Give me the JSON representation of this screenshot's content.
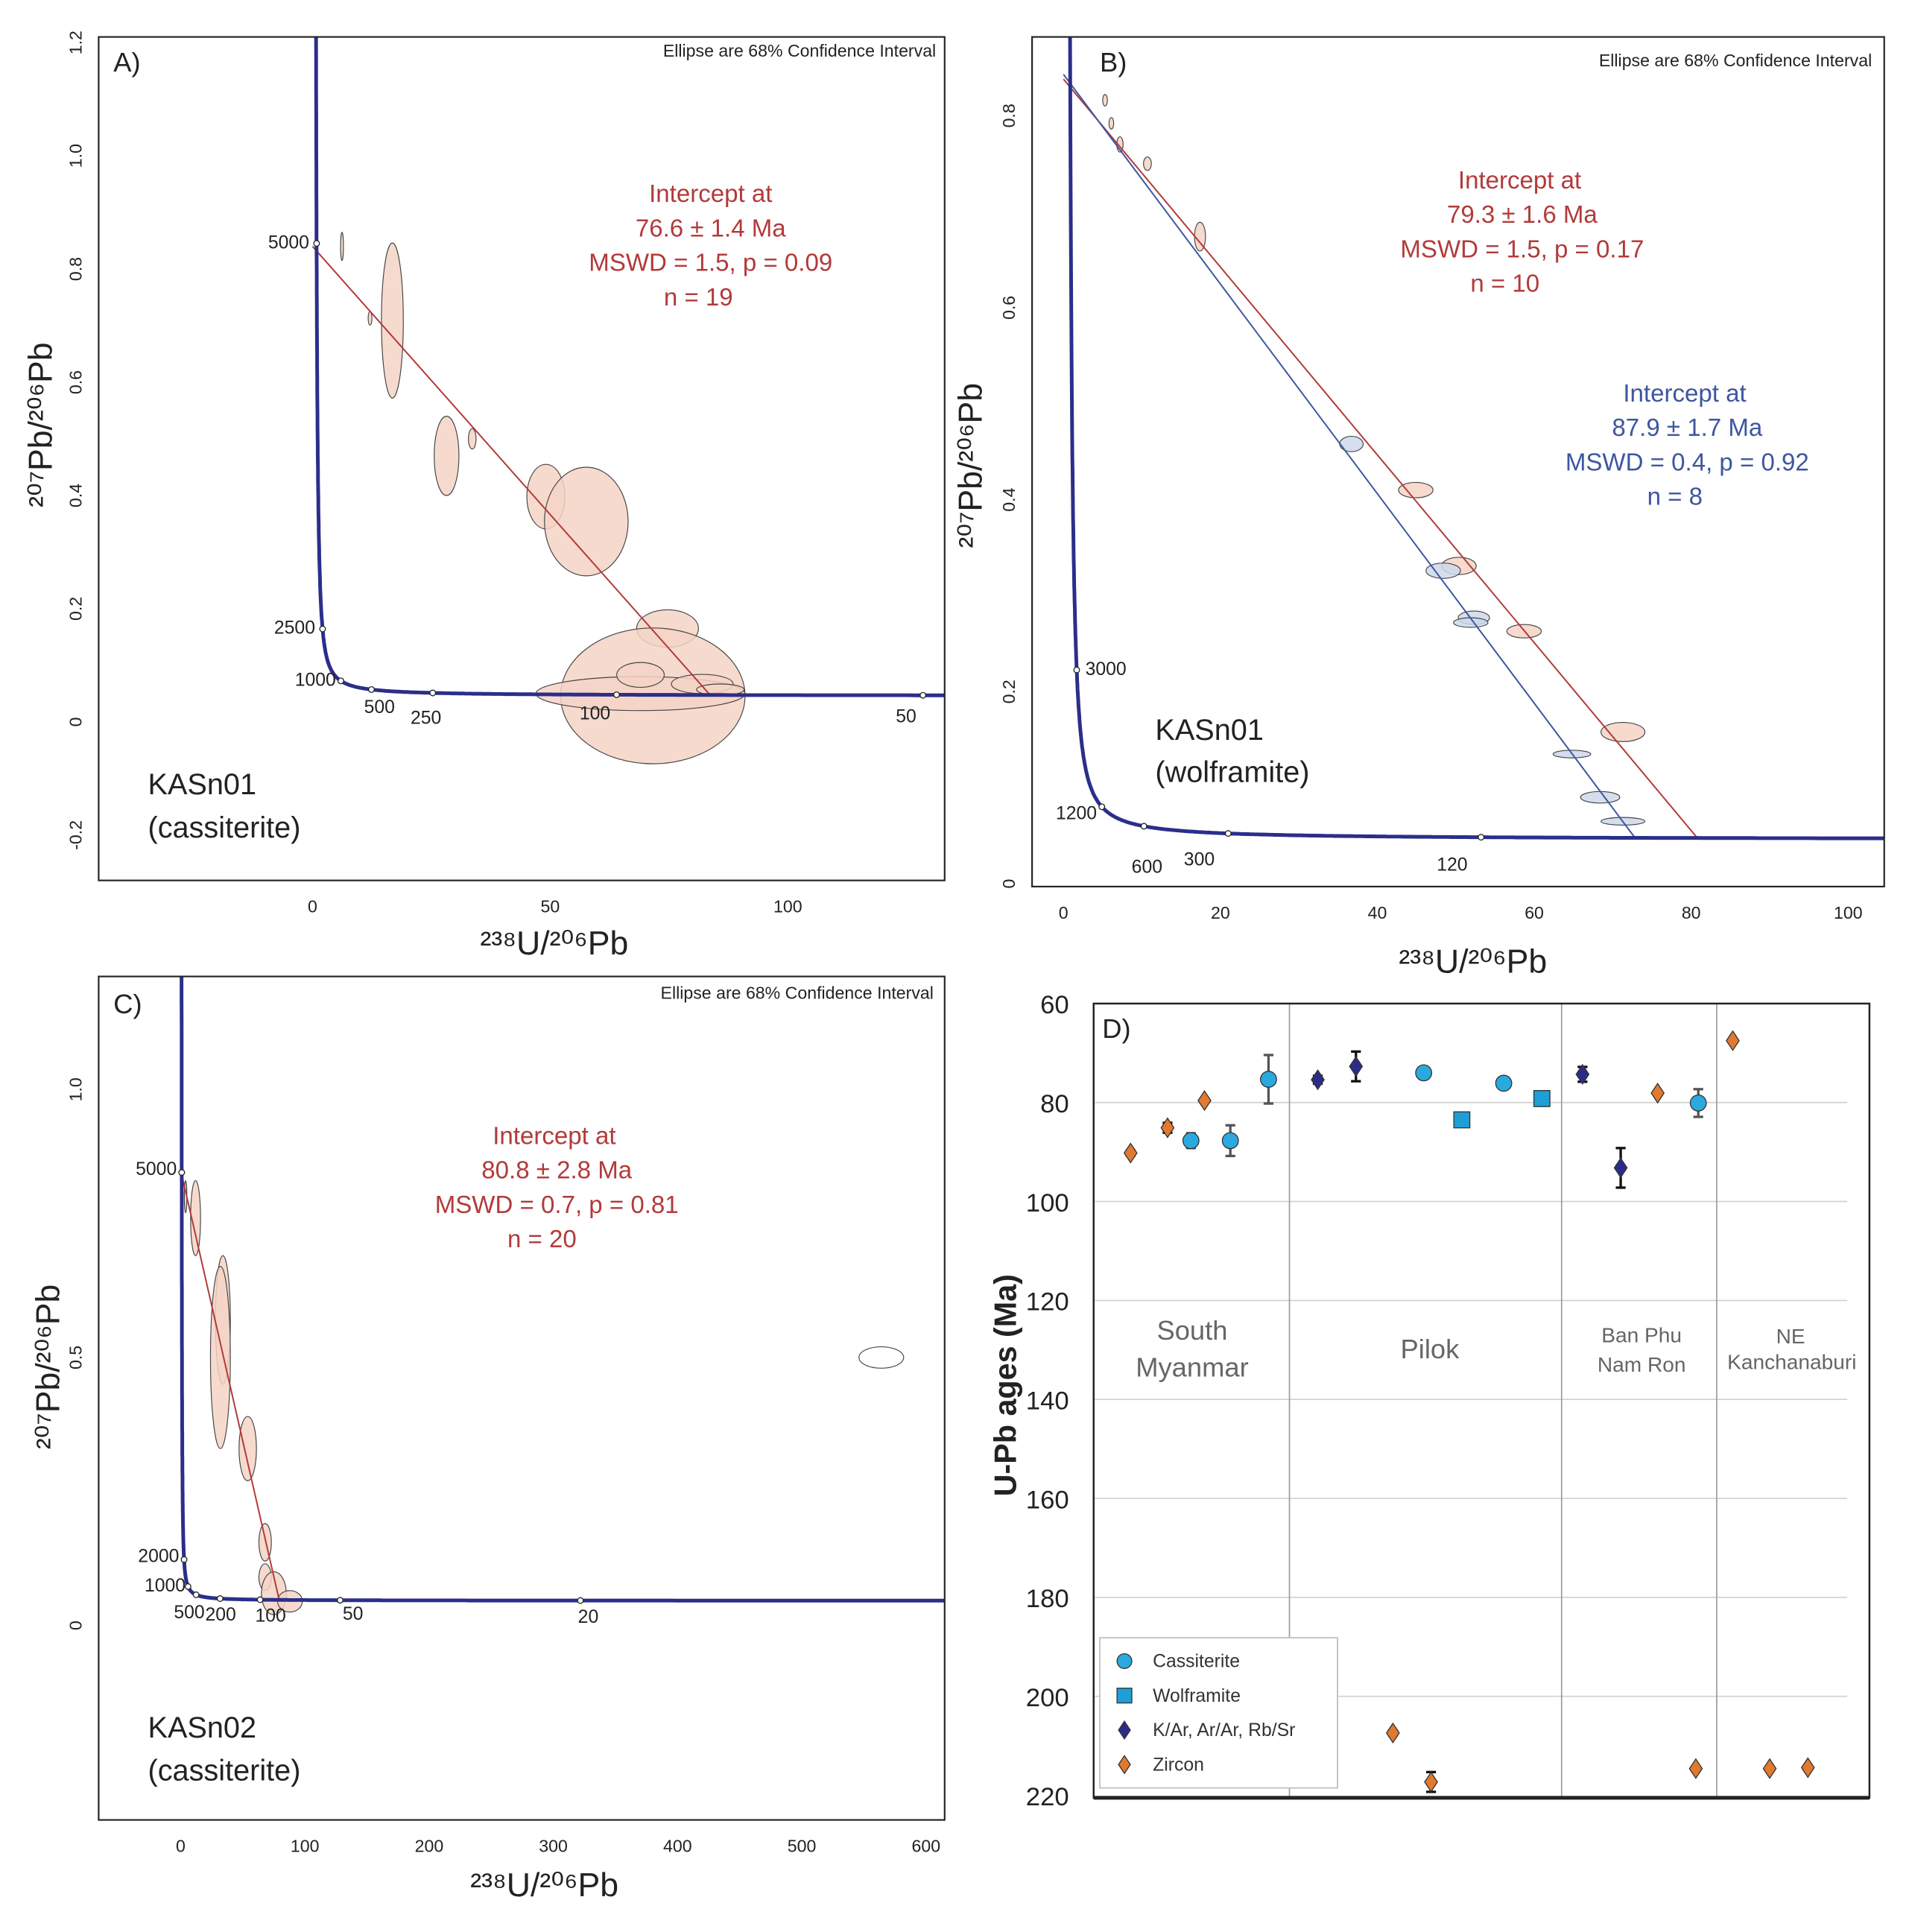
{
  "colors": {
    "concordia": "#2b2e8a",
    "discordia_red": "#b23a3a",
    "discordia_blue": "#3d56a0",
    "ellipse_red_fill": "#f5d3c6",
    "ellipse_blue_fill": "#cdd8ea",
    "cassiterite": "#2aa9df",
    "wolframite": "#1e9fd6",
    "kar": "#2c2c88",
    "zircon": "#e07a2e"
  },
  "chart_data": [
    {
      "id": "A",
      "type": "scatter",
      "panel_label": "A)",
      "note": "Ellipse are 68% Confidence Interval",
      "xlabel": "²³⁸U/²⁰⁶Pb",
      "ylabel": "²⁰⁷Pb/²⁰⁶Pb",
      "xlim": [
        -45,
        133
      ],
      "ylim": [
        -0.28,
        1.21
      ],
      "xticks": [
        0,
        50,
        100
      ],
      "yticks": [
        -0.2,
        0,
        0.2,
        0.4,
        0.6,
        0.8,
        1.0,
        1.2
      ],
      "ytick_labels": [
        "-0.2",
        "0",
        "0.2",
        "0.4",
        "0.6",
        "0.8",
        "1.0",
        "1.2"
      ],
      "concordia_ages_ma": [
        5000,
        2500,
        1000,
        500,
        250,
        100,
        50
      ],
      "sample": [
        "KASn01",
        "(cassiterite)"
      ],
      "discordia": [
        {
          "color": "red",
          "y_intercept": 0.84,
          "age_ma": 76.6,
          "text": [
            "Intercept at",
            "76.6 ± 1.4 Ma",
            "MSWD = 1.5, p = 0.09",
            "n = 19"
          ]
        }
      ],
      "ellipses": [
        {
          "x": 16.8,
          "y": 0.709,
          "sx": 2.3,
          "sy": 0.137,
          "c": "red"
        },
        {
          "x": 6.2,
          "y": 0.84,
          "sx": 0.3,
          "sy": 0.025,
          "c": "red"
        },
        {
          "x": 12.1,
          "y": 0.713,
          "sx": 0.4,
          "sy": 0.012,
          "c": "red"
        },
        {
          "x": 28.2,
          "y": 0.47,
          "sx": 2.6,
          "sy": 0.07,
          "c": "red"
        },
        {
          "x": 33.6,
          "y": 0.5,
          "sx": 0.8,
          "sy": 0.018,
          "c": "red"
        },
        {
          "x": 49.1,
          "y": 0.398,
          "sx": 4.0,
          "sy": 0.057,
          "c": "red"
        },
        {
          "x": 57.6,
          "y": 0.354,
          "sx": 8.8,
          "sy": 0.096,
          "c": "red"
        },
        {
          "x": 74.7,
          "y": 0.165,
          "sx": 6.5,
          "sy": 0.033,
          "c": "red"
        },
        {
          "x": 71.6,
          "y": 0.046,
          "sx": 19.4,
          "sy": 0.12,
          "c": "red"
        },
        {
          "x": 69.0,
          "y": 0.05,
          "sx": 22.0,
          "sy": 0.03,
          "c": "red"
        },
        {
          "x": 69.0,
          "y": 0.083,
          "sx": 5.0,
          "sy": 0.022,
          "c": "red"
        },
        {
          "x": 82.0,
          "y": 0.067,
          "sx": 6.5,
          "sy": 0.017,
          "c": "red"
        },
        {
          "x": 85.8,
          "y": 0.057,
          "sx": 5.0,
          "sy": 0.01,
          "c": "red"
        }
      ]
    },
    {
      "id": "B",
      "type": "scatter",
      "panel_label": "B)",
      "note": "Ellipse are 68% Confidence Interval",
      "xlabel": "²³⁸U/²⁰⁶Pb",
      "ylabel": "²⁰⁷Pb/²⁰⁶Pb",
      "xlim": [
        -4,
        104.6
      ],
      "ylim": [
        -0.003,
        0.882
      ],
      "xticks": [
        0,
        20,
        40,
        60,
        80,
        100
      ],
      "yticks": [
        0,
        0.2,
        0.4,
        0.6,
        0.8
      ],
      "ytick_labels": [
        "0",
        "0.2",
        "0.4",
        "0.6",
        "0.8"
      ],
      "concordia_ages_ma": [
        3000,
        1200,
        600,
        300,
        120
      ],
      "sample": [
        "KASn01",
        "(wolframite)"
      ],
      "discordia": [
        {
          "color": "red",
          "y_intercept": 0.838,
          "age_ma": 79.3,
          "text": [
            "Intercept at",
            "79.3 ± 1.6 Ma",
            "MSWD = 1.5, p = 0.17",
            "n = 10"
          ]
        },
        {
          "color": "blue",
          "y_intercept": 0.843,
          "age_ma": 87.9,
          "text": [
            "Intercept at",
            "87.9 ± 1.7 Ma",
            "MSWD = 0.4, p = 0.92",
            "n = 8"
          ]
        }
      ],
      "ellipses": [
        {
          "x": 5.3,
          "y": 0.816,
          "sx": 0.3,
          "sy": 0.006,
          "c": "red"
        },
        {
          "x": 6.1,
          "y": 0.792,
          "sx": 0.3,
          "sy": 0.006,
          "c": "red"
        },
        {
          "x": 7.2,
          "y": 0.77,
          "sx": 0.4,
          "sy": 0.008,
          "c": "red"
        },
        {
          "x": 10.7,
          "y": 0.75,
          "sx": 0.5,
          "sy": 0.007,
          "c": "red"
        },
        {
          "x": 17.4,
          "y": 0.674,
          "sx": 0.7,
          "sy": 0.015,
          "c": "red"
        },
        {
          "x": 44.9,
          "y": 0.41,
          "sx": 2.2,
          "sy": 0.008,
          "c": "red"
        },
        {
          "x": 50.4,
          "y": 0.331,
          "sx": 2.2,
          "sy": 0.009,
          "c": "red"
        },
        {
          "x": 58.7,
          "y": 0.263,
          "sx": 2.2,
          "sy": 0.007,
          "c": "red"
        },
        {
          "x": 71.3,
          "y": 0.158,
          "sx": 2.8,
          "sy": 0.01,
          "c": "red"
        },
        {
          "x": 36.7,
          "y": 0.458,
          "sx": 1.5,
          "sy": 0.008,
          "c": "blue"
        },
        {
          "x": 48.4,
          "y": 0.326,
          "sx": 2.2,
          "sy": 0.008,
          "c": "blue"
        },
        {
          "x": 52.3,
          "y": 0.277,
          "sx": 2.0,
          "sy": 0.007,
          "c": "blue"
        },
        {
          "x": 51.9,
          "y": 0.272,
          "sx": 2.2,
          "sy": 0.005,
          "c": "blue"
        },
        {
          "x": 64.8,
          "y": 0.135,
          "sx": 2.4,
          "sy": 0.004,
          "c": "blue"
        },
        {
          "x": 68.4,
          "y": 0.09,
          "sx": 2.5,
          "sy": 0.006,
          "c": "blue"
        },
        {
          "x": 71.3,
          "y": 0.065,
          "sx": 2.8,
          "sy": 0.004,
          "c": "blue"
        }
      ]
    },
    {
      "id": "C",
      "type": "scatter",
      "panel_label": "C)",
      "note": "Ellipse are 68% Confidence Interval",
      "xlabel": "²³⁸U/²⁰⁶Pb",
      "ylabel": "²⁰⁷Pb/²⁰⁶Pb",
      "xlim": [
        -66,
        615
      ],
      "ylim": [
        -0.363,
        1.211
      ],
      "xticks": [
        0,
        100,
        200,
        300,
        400,
        500,
        600
      ],
      "yticks": [
        0,
        0.5,
        1.0
      ],
      "ytick_labels": [
        "0",
        "0.5",
        "1.0"
      ],
      "concordia_ages_ma": [
        5000,
        2000,
        1000,
        500,
        200,
        100,
        50,
        20
      ],
      "sample": [
        "KASn02",
        "(cassiterite)"
      ],
      "discordia": [
        {
          "color": "red",
          "y_intercept": 0.85,
          "age_ma": 80.8,
          "text": [
            "Intercept at",
            "80.8 ± 2.8 Ma",
            "MSWD = 0.7, p = 0.81",
            "n = 20"
          ]
        }
      ],
      "ellipses": [
        {
          "x": 12,
          "y": 0.76,
          "sx": 4,
          "sy": 0.07,
          "c": "red"
        },
        {
          "x": 4,
          "y": 0.8,
          "sx": 1,
          "sy": 0.03,
          "c": "red"
        },
        {
          "x": 34,
          "y": 0.57,
          "sx": 6,
          "sy": 0.12,
          "c": "red"
        },
        {
          "x": 32,
          "y": 0.5,
          "sx": 8,
          "sy": 0.17,
          "c": "red"
        },
        {
          "x": 54,
          "y": 0.33,
          "sx": 7,
          "sy": 0.06,
          "c": "red"
        },
        {
          "x": 68,
          "y": 0.155,
          "sx": 5,
          "sy": 0.035,
          "c": "red"
        },
        {
          "x": 68,
          "y": 0.09,
          "sx": 5,
          "sy": 0.025,
          "c": "red"
        },
        {
          "x": 75,
          "y": 0.06,
          "sx": 10,
          "sy": 0.04,
          "c": "red"
        },
        {
          "x": 88,
          "y": 0.045,
          "sx": 10,
          "sy": 0.02,
          "c": "red"
        },
        {
          "x": 564,
          "y": 0.5,
          "sx": 18,
          "sy": 0.02,
          "c": "white"
        }
      ]
    },
    {
      "id": "D",
      "type": "scatter",
      "panel_label": "D)",
      "ylabel": "U-Pb ages (Ma)",
      "ylim": [
        220,
        60
      ],
      "y_inverted": true,
      "yticks": [
        60,
        80,
        100,
        120,
        140,
        160,
        180,
        200,
        220
      ],
      "grid": true,
      "groups": [
        {
          "name": [
            "South",
            "Myanmar"
          ]
        },
        {
          "name": [
            "Pilok"
          ]
        },
        {
          "name": [
            "Ban Phu",
            "Nam Ron"
          ]
        },
        {
          "name": [
            "NE",
            "Kanchanaburi"
          ]
        }
      ],
      "legend": {
        "placement": "bottom-left",
        "entries": [
          {
            "key": "cassiterite",
            "label": "Cassiterite",
            "marker": "circle"
          },
          {
            "key": "wolframite",
            "label": "Wolframite",
            "marker": "square"
          },
          {
            "key": "kar",
            "label": "K/Ar, Ar/Ar, Rb/Sr",
            "marker": "diamond"
          },
          {
            "key": "zircon",
            "label": "Zircon",
            "marker": "diamond"
          }
        ]
      },
      "points": [
        {
          "group": 0,
          "mineral": "zircon",
          "age": 90.2,
          "err": 0.5
        },
        {
          "group": 0,
          "mineral": "zircon",
          "age": 85.1,
          "err": 1.0
        },
        {
          "group": 0,
          "mineral": "cassiterite",
          "age": 87.7,
          "err": 1.5
        },
        {
          "group": 0,
          "mineral": "zircon",
          "age": 79.6,
          "err": 0
        },
        {
          "group": 0,
          "mineral": "cassiterite",
          "age": 87.7,
          "err": 3.1
        },
        {
          "group": 0,
          "mineral": "cassiterite",
          "age": 75.3,
          "err": 4.9
        },
        {
          "group": 1,
          "mineral": "kar",
          "age": 75.4,
          "err": 0.8
        },
        {
          "group": 1,
          "mineral": "kar",
          "age": 72.7,
          "err": 3.0
        },
        {
          "group": 1,
          "mineral": "zircon",
          "age": 207.4,
          "err": 0.5
        },
        {
          "group": 1,
          "mineral": "cassiterite",
          "age": 74.0,
          "err": 0.5
        },
        {
          "group": 1,
          "mineral": "zircon",
          "age": 217.3,
          "err": 2.0
        },
        {
          "group": 1,
          "mineral": "wolframite",
          "age": 83.5,
          "err": 0
        },
        {
          "group": 1,
          "mineral": "cassiterite",
          "age": 76.1,
          "err": 0.5
        },
        {
          "group": 1,
          "mineral": "wolframite",
          "age": 79.2,
          "err": 1.0
        },
        {
          "group": 2,
          "mineral": "kar",
          "age": 74.3,
          "err": 1.5
        },
        {
          "group": 2,
          "mineral": "kar",
          "age": 93.2,
          "err": 4.0
        },
        {
          "group": 2,
          "mineral": "zircon",
          "age": 78.1,
          "err": 0
        },
        {
          "group": 2,
          "mineral": "zircon",
          "age": 214.6,
          "err": 0
        },
        {
          "group": 2,
          "mineral": "cassiterite",
          "age": 80.1,
          "err": 2.8
        },
        {
          "group": 3,
          "mineral": "zircon",
          "age": 67.5,
          "err": 0
        },
        {
          "group": 3,
          "mineral": "zircon",
          "age": 214.6,
          "err": 0
        },
        {
          "group": 3,
          "mineral": "zircon",
          "age": 214.4,
          "err": 0
        }
      ]
    }
  ]
}
